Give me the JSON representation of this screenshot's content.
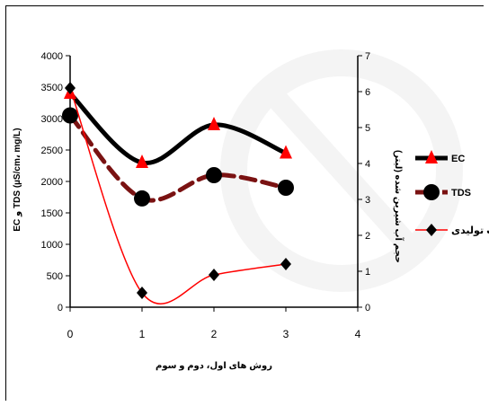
{
  "chart_data": {
    "type": "line",
    "xlabel": "روش های اول، دوم و سوم",
    "ylabel_left": "EC و TDS  (µS/cm، mg/L)",
    "ylabel_right": "حجم  آب شیرین شده  (لیتر)",
    "x_ticks": [
      "0",
      "1",
      "2",
      "3",
      "4"
    ],
    "y_left_ticks": [
      "0",
      "500",
      "1000",
      "1500",
      "2000",
      "2500",
      "3000",
      "3500",
      "4000"
    ],
    "y_right_ticks": [
      "0",
      "1",
      "2",
      "3",
      "4",
      "5",
      "6",
      "7"
    ],
    "xlim": [
      0,
      4
    ],
    "ylim_left": [
      0,
      4000
    ],
    "ylim_right": [
      0,
      7
    ],
    "grid": false,
    "legend_position": "right",
    "series": [
      {
        "name": "EC",
        "axis": "left",
        "x": [
          0,
          1,
          2,
          3
        ],
        "values": [
          3400,
          2300,
          2900,
          2450
        ],
        "color": "#000000",
        "marker": "triangle",
        "marker_color": "#ff0000",
        "line_style": "solid"
      },
      {
        "name": "TDS",
        "axis": "left",
        "x": [
          0,
          1,
          2,
          3
        ],
        "values": [
          3050,
          1730,
          2100,
          1900
        ],
        "color": "#7a1212",
        "marker": "circle",
        "marker_color": "#000000",
        "line_style": "dashed"
      },
      {
        "name": "حجم آب تولیدی",
        "axis": "right",
        "x": [
          0,
          1,
          2,
          3
        ],
        "values": [
          6.1,
          0.4,
          0.9,
          1.2
        ],
        "color": "#ff0000",
        "marker": "diamond",
        "marker_color": "#000000",
        "line_style": "solid"
      }
    ]
  }
}
